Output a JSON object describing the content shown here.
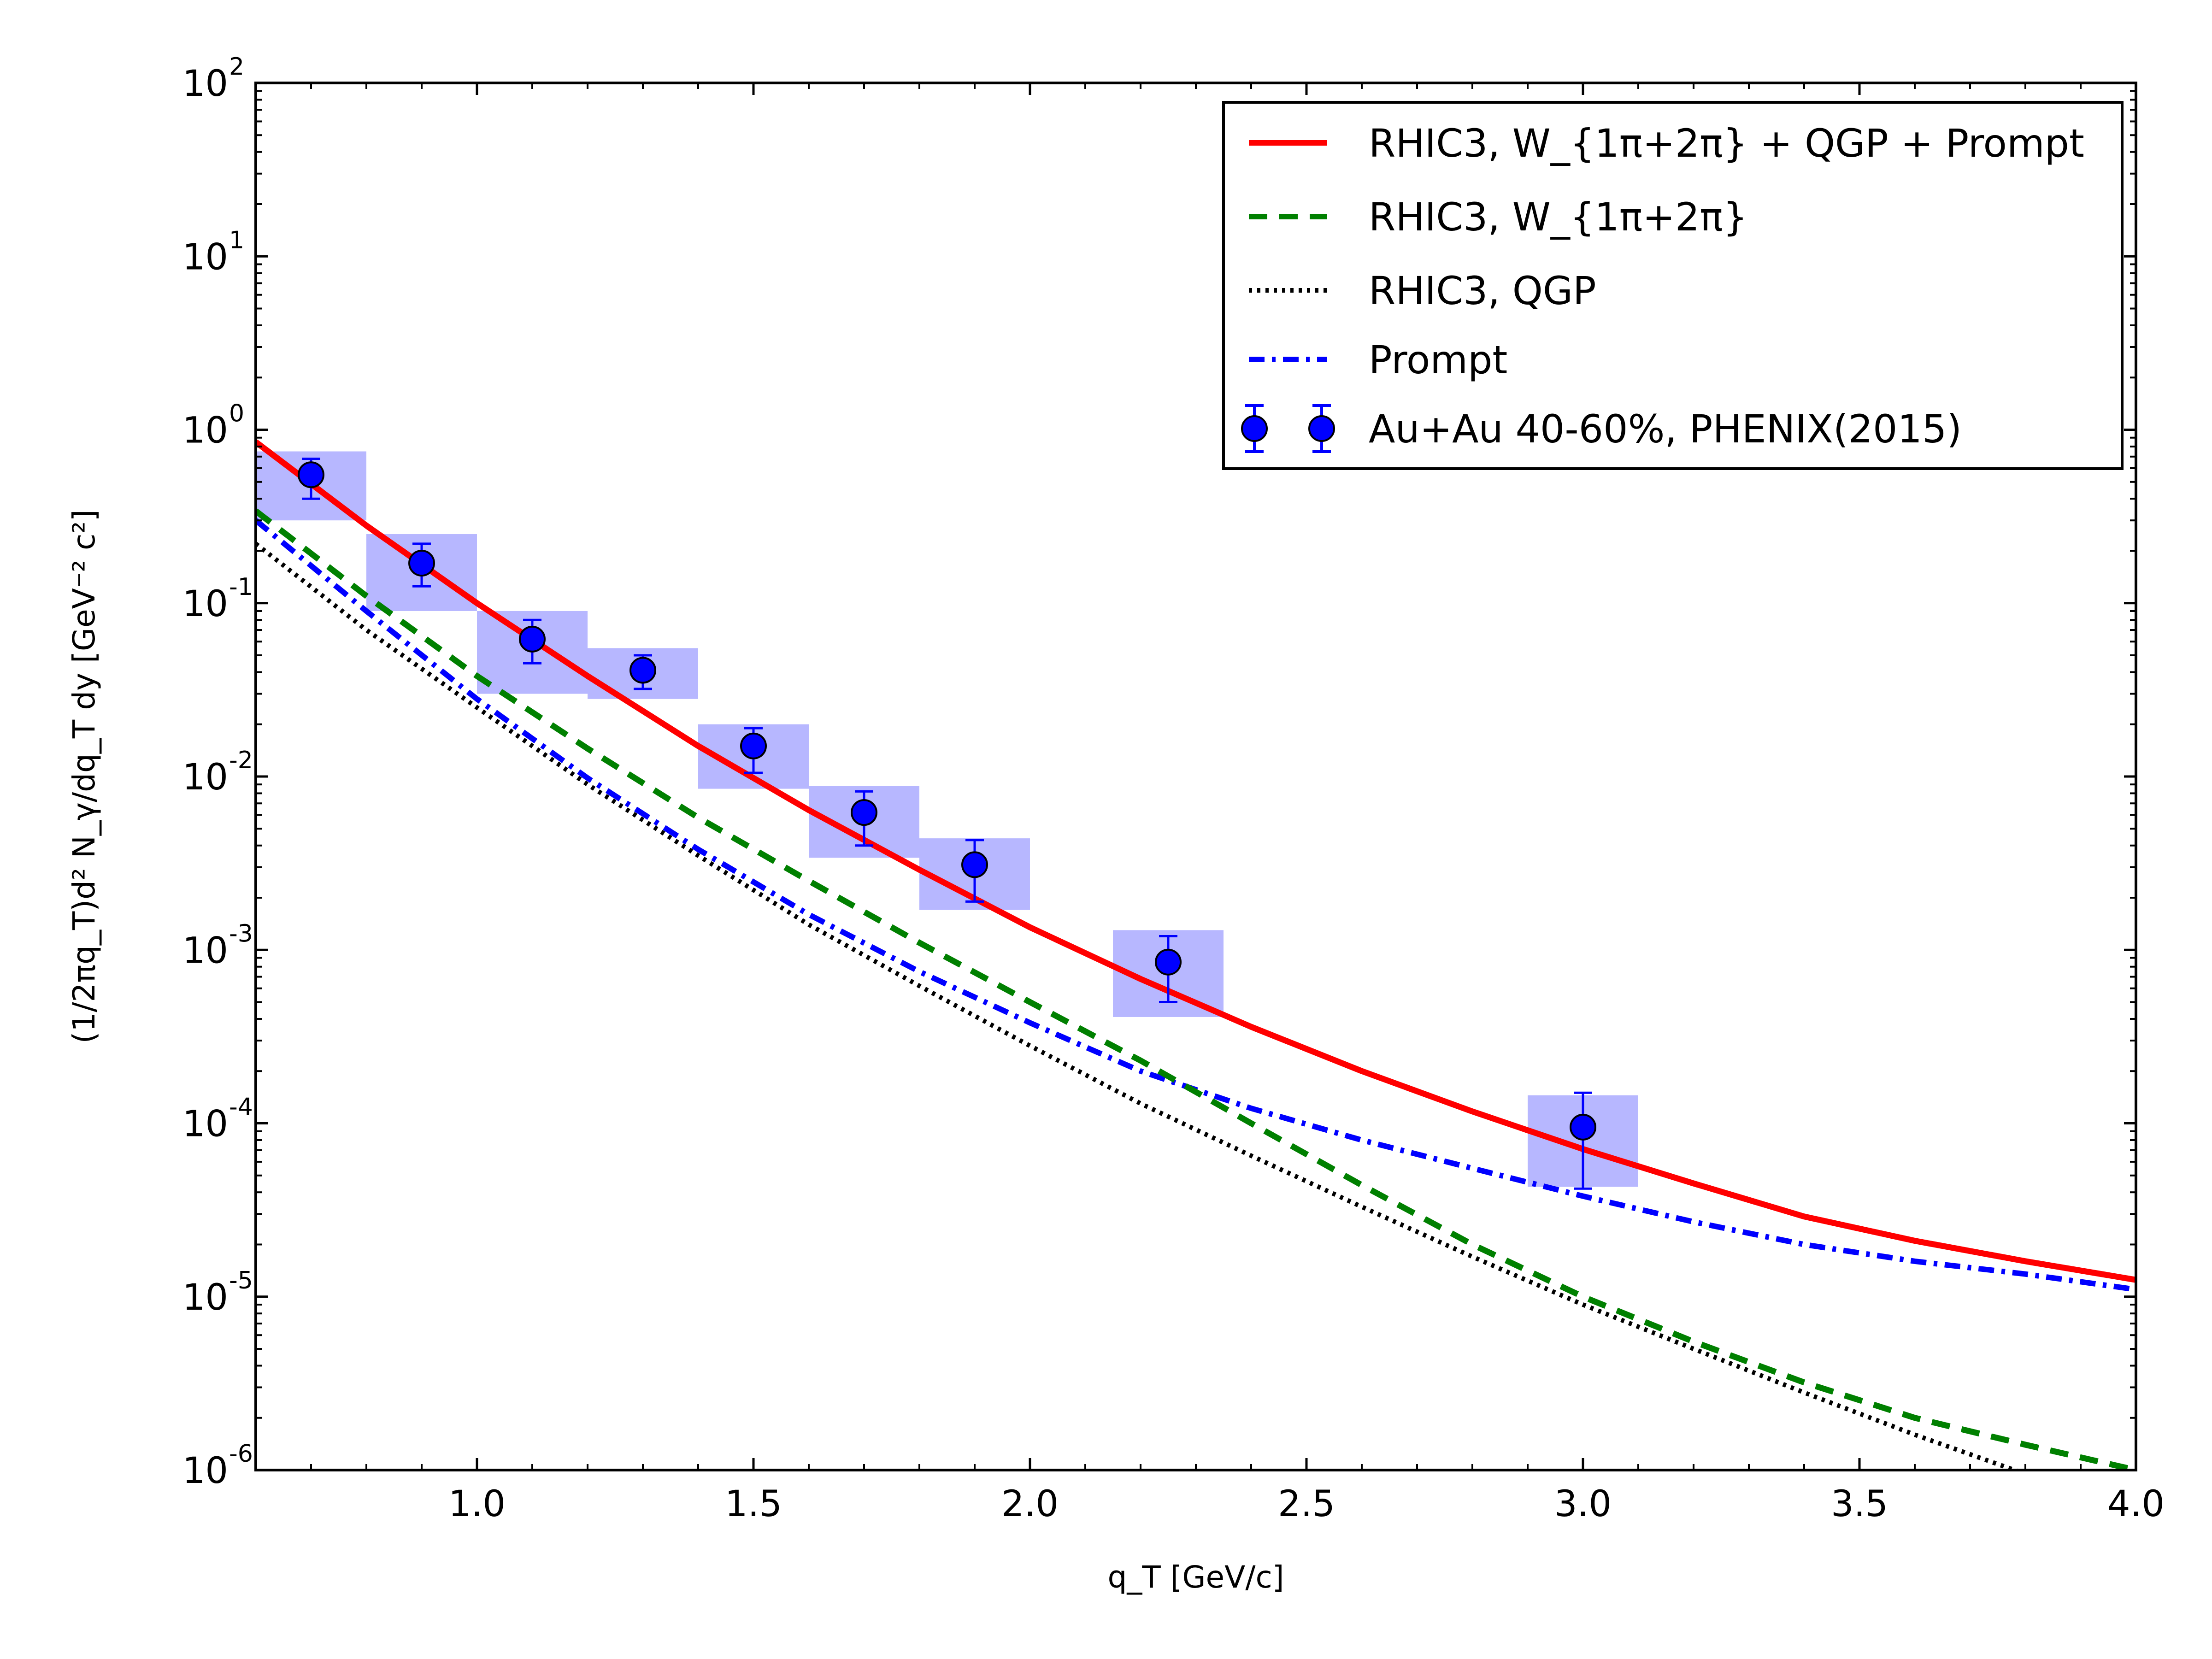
{
  "chart_data": {
    "type": "line",
    "xlabel": "q_T [GeV/c]",
    "ylabel": "(1/2πq_T)d² N_γ/dq_T dy [GeV⁻² c²]",
    "xlim": [
      0.6,
      4.0
    ],
    "ylim": [
      1e-06,
      100
    ],
    "yscale": "log",
    "grid": false,
    "legend_position": "top-right",
    "x_tick_labels": [
      "1.0",
      "1.5",
      "2.0",
      "2.5",
      "3.0",
      "3.5",
      "4.0"
    ],
    "y_tick_labels": [
      {
        "base": "10",
        "exp": "-6"
      },
      {
        "base": "10",
        "exp": "-5"
      },
      {
        "base": "10",
        "exp": "-4"
      },
      {
        "base": "10",
        "exp": "-3"
      },
      {
        "base": "10",
        "exp": "-2"
      },
      {
        "base": "10",
        "exp": "-1"
      },
      {
        "base": "10",
        "exp": "0"
      },
      {
        "base": "10",
        "exp": "1"
      },
      {
        "base": "10",
        "exp": "2"
      }
    ],
    "series": [
      {
        "name": "RHIC3, W_{1π+2π} + QGP + Prompt",
        "style": "solid",
        "color": "#ff0000",
        "x": [
          0.6,
          0.8,
          1.0,
          1.2,
          1.4,
          1.6,
          1.8,
          2.0,
          2.2,
          2.4,
          2.6,
          2.8,
          3.0,
          3.2,
          3.4,
          3.6,
          3.8,
          4.0
        ],
        "y": [
          0.85,
          0.28,
          0.1,
          0.038,
          0.015,
          0.0064,
          0.0029,
          0.00135,
          0.00068,
          0.00036,
          0.0002,
          0.000117,
          7.1e-05,
          4.5e-05,
          2.9e-05,
          2.1e-05,
          1.6e-05,
          1.25e-05
        ]
      },
      {
        "name": "RHIC3, W_{1π+2π}",
        "style": "dashed",
        "color": "#008000",
        "x": [
          0.6,
          0.8,
          1.0,
          1.2,
          1.4,
          1.6,
          1.8,
          2.0,
          2.2,
          2.4,
          2.6,
          2.8,
          3.0,
          3.2,
          3.4,
          3.6,
          3.8,
          4.0
        ],
        "y": [
          0.34,
          0.11,
          0.038,
          0.0145,
          0.0058,
          0.0025,
          0.0011,
          0.0005,
          0.00023,
          0.0001,
          4.4e-05,
          2e-05,
          1e-05,
          5.5e-06,
          3.2e-06,
          2e-06,
          1.4e-06,
          1e-06
        ]
      },
      {
        "name": "RHIC3, QGP",
        "style": "dotted",
        "color": "#000000",
        "x": [
          0.6,
          0.8,
          1.0,
          1.2,
          1.4,
          1.6,
          1.8,
          2.0,
          2.2,
          2.4,
          2.6,
          2.8,
          3.0,
          3.2,
          3.4,
          3.6,
          3.8
        ],
        "y": [
          0.22,
          0.07,
          0.025,
          0.009,
          0.0035,
          0.0014,
          0.00062,
          0.00028,
          0.00013,
          6.5e-05,
          3.3e-05,
          1.7e-05,
          9e-06,
          5e-06,
          2.8e-06,
          1.6e-06,
          9.5e-07
        ]
      },
      {
        "name": "Prompt",
        "style": "dashdot",
        "color": "#0000ff",
        "x": [
          0.6,
          0.8,
          1.0,
          1.2,
          1.4,
          1.6,
          1.8,
          2.0,
          2.2,
          2.4,
          2.6,
          2.8,
          3.0,
          3.2,
          3.4,
          3.6,
          3.8,
          4.0
        ],
        "y": [
          0.3,
          0.09,
          0.028,
          0.0098,
          0.0038,
          0.0016,
          0.00075,
          0.00038,
          0.0002,
          0.000122,
          8e-05,
          5.5e-05,
          3.8e-05,
          2.7e-05,
          2e-05,
          1.6e-05,
          1.35e-05,
          1.1e-05
        ]
      },
      {
        "name": "Au+Au 40-60%, PHENIX(2015)",
        "style": "points",
        "color": "#0000ff",
        "box_color": "#b3b3ff",
        "x": [
          0.7,
          0.9,
          1.1,
          1.3,
          1.5,
          1.7,
          1.9,
          2.25,
          3.0
        ],
        "y": [
          0.55,
          0.17,
          0.062,
          0.041,
          0.015,
          0.0062,
          0.0031,
          0.00085,
          9.5e-05
        ],
        "yerr_low": [
          0.4,
          0.125,
          0.045,
          0.032,
          0.0105,
          0.004,
          0.0019,
          0.0005,
          4.2e-05
        ],
        "yerr_high": [
          0.68,
          0.22,
          0.08,
          0.05,
          0.019,
          0.0082,
          0.0043,
          0.0012,
          0.00015
        ],
        "box_x_low": [
          0.6,
          0.8,
          1.0,
          1.2,
          1.4,
          1.6,
          1.8,
          2.15,
          2.9
        ],
        "box_x_high": [
          0.8,
          1.0,
          1.2,
          1.4,
          1.6,
          1.8,
          2.0,
          2.35,
          3.1
        ],
        "box_y_low": [
          0.3,
          0.09,
          0.03,
          0.028,
          0.0085,
          0.0034,
          0.0017,
          0.00041,
          4.3e-05
        ],
        "box_y_high": [
          0.75,
          0.25,
          0.09,
          0.055,
          0.02,
          0.0088,
          0.0044,
          0.0013,
          0.000145
        ]
      }
    ]
  }
}
